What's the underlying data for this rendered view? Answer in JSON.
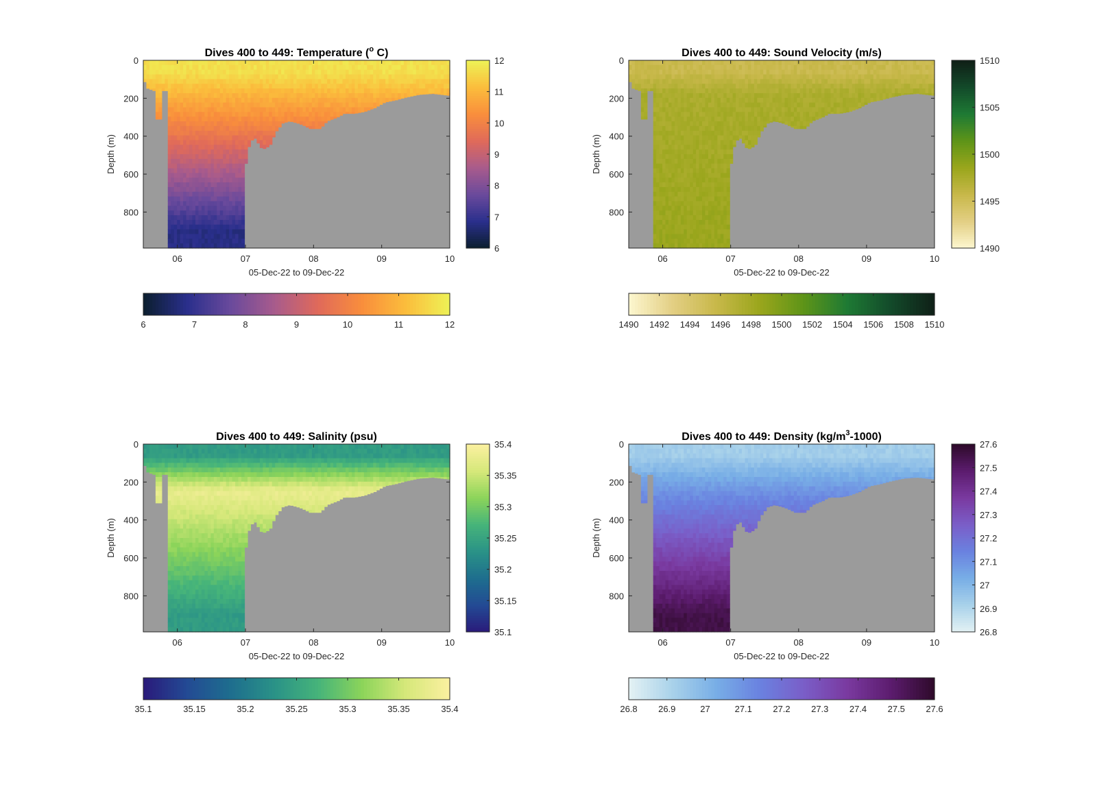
{
  "chart_data": [
    {
      "type": "heatmap",
      "variable": "temperature",
      "title": "Dives 400 to 449: Temperature (",
      "title_sup": "o",
      "title_end": " C)",
      "xlabel": "05-Dec-22 to 09-Dec-22",
      "ylabel": "Depth (m)",
      "xticks": [
        "06",
        "07",
        "08",
        "09",
        "10"
      ],
      "xlim_days": [
        5.5,
        10.0
      ],
      "yticks": [
        0,
        200,
        400,
        600,
        800
      ],
      "ylim": [
        0,
        990
      ],
      "ydir": "reverse",
      "colormap": [
        "#0b1e2e",
        "#2a2f8c",
        "#6a4a9c",
        "#a85b8c",
        "#e06a5a",
        "#f98e3c",
        "#fbbd3c",
        "#eef256"
      ],
      "clim": [
        6,
        12
      ],
      "colorbar_ticks": [
        "6",
        "7",
        "8",
        "9",
        "10",
        "11",
        "12"
      ],
      "horizontal_colorbar_ticks": [
        "6",
        "7",
        "8",
        "9",
        "10",
        "11",
        "12"
      ],
      "surface_value": 11.7,
      "thermocline_value": 11.0,
      "deep_value": 6.8,
      "mid_depth": 180
    },
    {
      "type": "heatmap",
      "variable": "sound_velocity",
      "title": "Dives 400 to 449: Sound Velocity (m/s)",
      "title_sup": "",
      "title_end": "",
      "xlabel": "05-Dec-22 to 09-Dec-22",
      "ylabel": "Depth (m)",
      "xticks": [
        "06",
        "07",
        "08",
        "09",
        "10"
      ],
      "xlim_days": [
        5.5,
        10.0
      ],
      "yticks": [
        0,
        200,
        400,
        600,
        800
      ],
      "ylim": [
        0,
        990
      ],
      "ydir": "reverse",
      "colormap": [
        "#fdf7d0",
        "#e3cf84",
        "#c8b84a",
        "#9aa61c",
        "#5e9418",
        "#1e7a34",
        "#134a2a",
        "#0f1f17"
      ],
      "clim": [
        1490,
        1510
      ],
      "colorbar_ticks": [
        "1490",
        "1495",
        "1500",
        "1505",
        "1510"
      ],
      "horizontal_colorbar_ticks": [
        "1490",
        "1492",
        "1494",
        "1496",
        "1498",
        "1500",
        "1502",
        "1504",
        "1506",
        "1508",
        "1510"
      ],
      "surface_value": 1495.5,
      "thermocline_value": 1497.5,
      "deep_value": 1498.5,
      "mid_depth": 180
    },
    {
      "type": "heatmap",
      "variable": "salinity",
      "title": "Dives 400 to 449: Salinity (psu)",
      "title_sup": "",
      "title_end": "",
      "xlabel": "05-Dec-22 to 09-Dec-22",
      "ylabel": "Depth (m)",
      "xticks": [
        "06",
        "07",
        "08",
        "09",
        "10"
      ],
      "xlim_days": [
        5.5,
        10.0
      ],
      "yticks": [
        0,
        200,
        400,
        600,
        800
      ],
      "ylim": [
        0,
        990
      ],
      "ydir": "reverse",
      "colormap": [
        "#2a1a7a",
        "#234a94",
        "#1e6e8e",
        "#2a9287",
        "#46b47a",
        "#8cd45a",
        "#d6e87a",
        "#fbf0a0"
      ],
      "clim": [
        35.1,
        35.4
      ],
      "colorbar_ticks": [
        "35.1",
        "35.15",
        "35.2",
        "35.25",
        "35.3",
        "35.35",
        "35.4"
      ],
      "horizontal_colorbar_ticks": [
        "35.1",
        "35.15",
        "35.2",
        "35.25",
        "35.3",
        "35.35",
        "35.4"
      ],
      "surface_value": 35.24,
      "thermocline_value": 35.38,
      "deep_value": 35.24,
      "mid_depth": 250
    },
    {
      "type": "heatmap",
      "variable": "density",
      "title": "Dives 400 to 449: Density (kg/m",
      "title_sup": "3",
      "title_end": "-1000)",
      "xlabel": "05-Dec-22 to 09-Dec-22",
      "ylabel": "Depth (m)",
      "xticks": [
        "06",
        "07",
        "08",
        "09",
        "10"
      ],
      "xlim_days": [
        5.5,
        10.0
      ],
      "yticks": [
        0,
        200,
        400,
        600,
        800
      ],
      "ylim": [
        0,
        990
      ],
      "ydir": "reverse",
      "colormap": [
        "#e4f2f4",
        "#a9d2ea",
        "#78aee6",
        "#6a82e0",
        "#7a5ec8",
        "#7a3aa0",
        "#5c1c6e",
        "#2e0a2a"
      ],
      "clim": [
        26.8,
        27.6
      ],
      "colorbar_ticks": [
        "26.8",
        "26.9",
        "27",
        "27.1",
        "27.2",
        "27.3",
        "27.4",
        "27.5",
        "27.6"
      ],
      "horizontal_colorbar_ticks": [
        "26.8",
        "26.9",
        "27",
        "27.1",
        "27.2",
        "27.3",
        "27.4",
        "27.5",
        "27.6"
      ],
      "surface_value": 26.93,
      "thermocline_value": 27.1,
      "deep_value": 27.55,
      "mid_depth": 250
    }
  ],
  "shared": {
    "no_data_color": "#9b9b9b",
    "dive_count": 50,
    "deep_dive_days": [
      5.87,
      6.97
    ],
    "deep_dive_max_depth": 985,
    "seabed_profile": [
      [
        5.5,
        90
      ],
      [
        5.52,
        110
      ],
      [
        5.55,
        145
      ],
      [
        5.66,
        160
      ],
      [
        5.69,
        310
      ],
      [
        5.75,
        310
      ],
      [
        5.78,
        160
      ],
      [
        5.87,
        990
      ],
      [
        6.97,
        990
      ],
      [
        6.98,
        560
      ],
      [
        7.03,
        530
      ],
      [
        7.06,
        430
      ],
      [
        7.14,
        410
      ],
      [
        7.25,
        470
      ],
      [
        7.36,
        450
      ],
      [
        7.44,
        380
      ],
      [
        7.55,
        330
      ],
      [
        7.65,
        320
      ],
      [
        7.76,
        330
      ],
      [
        7.84,
        340
      ],
      [
        7.95,
        360
      ],
      [
        8.1,
        360
      ],
      [
        8.2,
        320
      ],
      [
        8.35,
        300
      ],
      [
        8.45,
        280
      ],
      [
        8.6,
        280
      ],
      [
        8.75,
        270
      ],
      [
        8.9,
        250
      ],
      [
        9.05,
        220
      ],
      [
        9.2,
        210
      ],
      [
        9.35,
        195
      ],
      [
        9.55,
        180
      ],
      [
        9.75,
        175
      ],
      [
        10.0,
        185
      ]
    ]
  }
}
